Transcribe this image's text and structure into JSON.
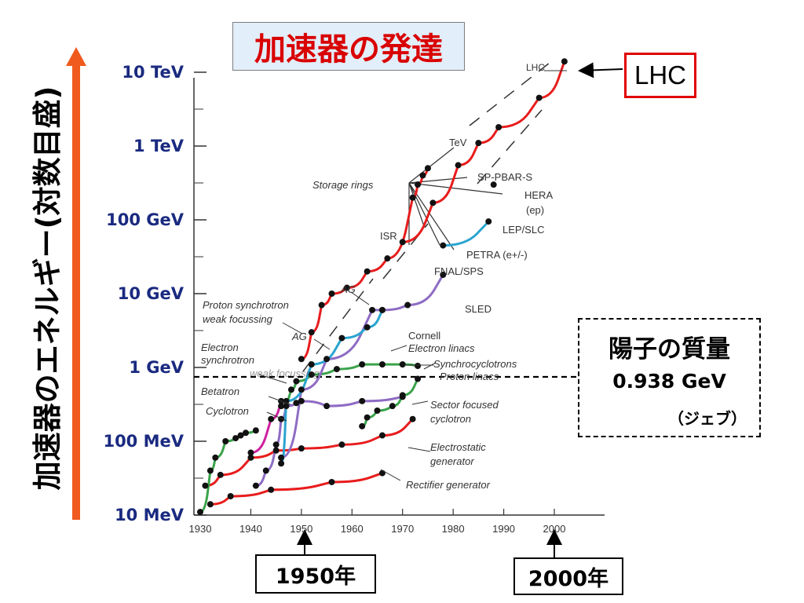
{
  "title": "加速器の発達",
  "ylabel": "加速器のエネルギー(対数目盛)",
  "callouts": {
    "lhc": "LHC",
    "proton_mass_title": "陽子の質量",
    "proton_mass_value": "0.938 GeV",
    "proton_mass_unit": "（ジェブ）",
    "year_1950": "1950年",
    "year_2000": "2000年"
  },
  "colors": {
    "title": "#d90000",
    "arrow": "#f05a1e",
    "tick_text": "#1a2a80",
    "red": "#e81c1c",
    "purple": "#8e6cc4",
    "green": "#3aa34a",
    "cyan": "#2aa4d0",
    "magenta": "#d020a0"
  },
  "chart_data": {
    "type": "line",
    "x_ticks": [
      "1930",
      "1940",
      "1950",
      "1960",
      "1970",
      "1980",
      "1990",
      "2000"
    ],
    "y_ticks": [
      "10 MeV",
      "100 MeV",
      "1 GeV",
      "10 GeV",
      "100 GeV",
      "1 TeV",
      "10 TeV"
    ],
    "xlim": [
      1929,
      2005
    ],
    "ylim_log10_eV": [
      7,
      13
    ],
    "y_scale": "log",
    "reference_line": {
      "y_GeV": 0.938,
      "style": "dashed"
    },
    "series": [
      {
        "color": "red",
        "name": "Rectifier generator",
        "points": [
          [
            1932,
            0.014
          ],
          [
            1936,
            0.018
          ],
          [
            1944,
            0.022
          ],
          [
            1956,
            0.028
          ],
          [
            1966,
            0.037
          ]
        ]
      },
      {
        "color": "red",
        "name": "Electrostatic generator",
        "points": [
          [
            1931,
            0.025
          ],
          [
            1934,
            0.035
          ],
          [
            1940,
            0.06
          ],
          [
            1945,
            0.075
          ],
          [
            1950,
            0.08
          ],
          [
            1958,
            0.09
          ],
          [
            1966,
            0.12
          ],
          [
            1972,
            0.2
          ]
        ]
      },
      {
        "color": "green",
        "name": "Cyclotron",
        "points": [
          [
            1930,
            0.011
          ],
          [
            1932,
            0.04
          ],
          [
            1933,
            0.06
          ],
          [
            1935,
            0.1
          ],
          [
            1937,
            0.11
          ],
          [
            1938,
            0.12
          ],
          [
            1939,
            0.13
          ],
          [
            1941,
            0.14
          ]
        ]
      },
      {
        "color": "green",
        "name": "Synchrocyclotrons",
        "points": [
          [
            1946,
            0.3
          ],
          [
            1948,
            0.5
          ],
          [
            1949,
            0.65
          ],
          [
            1952,
            0.8
          ],
          [
            1957,
            0.95
          ],
          [
            1962,
            1.1
          ],
          [
            1966,
            1.1
          ],
          [
            1970,
            1.1
          ],
          [
            1973,
            1.05
          ]
        ]
      },
      {
        "color": "green",
        "name": "Sector focused cyclotron",
        "points": [
          [
            1962,
            0.16
          ],
          [
            1963,
            0.21
          ],
          [
            1965,
            0.26
          ],
          [
            1968,
            0.3
          ],
          [
            1970,
            0.42
          ],
          [
            1973,
            0.7
          ]
        ]
      },
      {
        "color": "purple",
        "name": "Betatron",
        "points": [
          [
            1941,
            0.025
          ],
          [
            1943,
            0.04
          ],
          [
            1945,
            0.09
          ],
          [
            1946,
            0.2
          ],
          [
            1947,
            0.3
          ],
          [
            1949,
            0.33
          ],
          [
            1950,
            0.35
          ],
          [
            1955,
            0.3
          ],
          [
            1962,
            0.35
          ],
          [
            1970,
            0.4
          ]
        ]
      },
      {
        "color": "purple",
        "name": "Electron linacs",
        "points": [
          [
            1946,
            0.06
          ],
          [
            1950,
            0.5
          ],
          [
            1955,
            1.3
          ],
          [
            1964,
            6
          ],
          [
            1966,
            6
          ],
          [
            1971,
            7
          ],
          [
            1978,
            18
          ]
        ]
      },
      {
        "color": "cyan",
        "name": "Electron synchrotron",
        "points": [
          [
            1946,
            0.05
          ],
          [
            1947,
            0.35
          ],
          [
            1952,
            1.1
          ],
          [
            1958,
            2.5
          ],
          [
            1963,
            3.5
          ],
          [
            1966,
            6
          ]
        ]
      },
      {
        "color": "cyan",
        "name": "LEP/SLC",
        "points": [
          [
            1978,
            45
          ],
          [
            1987,
            95
          ]
        ]
      },
      {
        "color": "magenta",
        "name": "",
        "points": [
          [
            1940,
            0.07
          ],
          [
            1944,
            0.2
          ],
          [
            1946,
            0.35
          ]
        ]
      },
      {
        "color": "red",
        "name": "Proton synchrotron",
        "points": [
          [
            1950,
            1.3
          ],
          [
            1952,
            3
          ],
          [
            1954,
            7
          ],
          [
            1956,
            10
          ],
          [
            1959,
            12
          ],
          [
            1963,
            20
          ],
          [
            1967,
            30
          ],
          [
            1972,
            200
          ],
          [
            1973,
            300
          ],
          [
            1974,
            400
          ],
          [
            1975,
            500
          ]
        ]
      },
      {
        "color": "red",
        "name": "Storage rings",
        "points": [
          [
            1970,
            50
          ],
          [
            1976,
            170
          ],
          [
            1981,
            550
          ],
          [
            1985,
            1100
          ],
          [
            1989,
            1800
          ],
          [
            1997,
            4500
          ],
          [
            2002,
            14000
          ]
        ]
      }
    ],
    "isolated_points": [
      {
        "name": "HERA (ep)",
        "point": [
          1988,
          300
        ]
      }
    ],
    "annotations": [
      "LHC",
      "TeV",
      "SP-PBAR-S",
      "HERA",
      "(ep)",
      "LEP/SLC",
      "PETRA (e+/-)",
      "FNAL/SPS",
      "ISR",
      "Storage rings",
      "AG",
      "Proton synchrotron",
      "weak focussing",
      "SLED",
      "Cornell",
      "Electron linacs",
      "Electron",
      "synchrotron",
      "Synchrocyclotrons",
      "Proton linacs",
      "Betatron",
      "Cyclotron",
      "Sector focused",
      "cyclotron",
      "Electrostatic",
      "generator",
      "Rectifier generator",
      "weak focussing"
    ]
  }
}
